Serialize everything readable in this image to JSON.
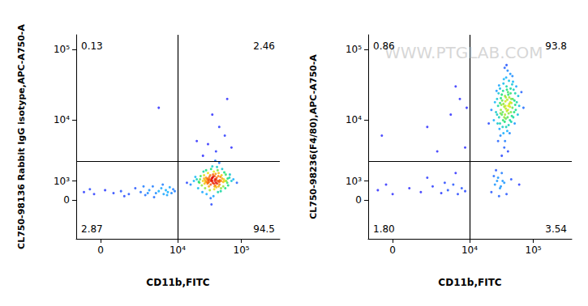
{
  "chart_data": [
    {
      "type": "scatter",
      "x_label": "CD11b,FITC",
      "y_label": "CL750-98136 Rabbit IgG isotype,APC-A750-A",
      "xlim": [
        -1250,
        400000
      ],
      "ylim": [
        -2400,
        160000
      ],
      "xticks": [
        0,
        {
          "value": 10000,
          "label": "10⁴"
        },
        {
          "value": 100000,
          "label": "10⁵"
        }
      ],
      "yticks": [
        0,
        {
          "value": 1000,
          "label": "10³"
        },
        {
          "value": 10000,
          "label": "10⁴"
        },
        {
          "value": 100000,
          "label": "10⁵"
        }
      ],
      "grid": false,
      "gates": {
        "x": 10000,
        "y": 2450
      },
      "quadrants": {
        "values": [
          0.13,
          2.46,
          2.87,
          94.5
        ],
        "value_labels": [
          "0.13",
          "2.46",
          "2.87",
          "94.5"
        ]
      },
      "x": [
        35000,
        30000,
        40000,
        28000,
        45000,
        33000,
        38000,
        25000,
        50000,
        31000,
        42000,
        36000,
        27000,
        55000,
        22000,
        47000,
        34000,
        39000,
        29000,
        44000,
        32000,
        60000,
        20000,
        37000,
        26000,
        52000,
        41000,
        30500,
        48000,
        35500,
        24000,
        65000,
        18000,
        43000,
        33500,
        57000,
        28500,
        38500,
        46000,
        31500,
        70000,
        16000,
        36500,
        42500,
        23000,
        53000,
        27500,
        40500,
        34500,
        49000,
        21000,
        62000,
        39500,
        30000,
        45500,
        26500,
        58000,
        37500,
        32500,
        44500,
        19000,
        75000,
        35000,
        28000,
        41500,
        50000,
        24500,
        33000,
        47500,
        54000,
        29500,
        38000,
        43500,
        31000,
        66000,
        22500,
        36000,
        40000,
        27000,
        52000,
        30000,
        85000,
        14000,
        45000,
        34000,
        39000,
        25500,
        56000,
        32000,
        42000,
        37000,
        35000,
        29000,
        48000,
        33500,
        44000,
        26000,
        61000,
        21500,
        38500,
        40000,
        30000,
        55000,
        25000,
        45000,
        35000,
        70000,
        20000,
        60000,
        5000,
        -800,
        -300,
        200,
        600,
        1000,
        1500,
        2000,
        2500,
        3000,
        3500,
        4000,
        4500,
        5000,
        5500,
        6000,
        6500,
        7000,
        7500,
        8000,
        8500,
        9000,
        1200,
        2800,
        -500,
        4200,
        5800,
        3300,
        6800
      ],
      "values": [
        1000,
        900,
        1100,
        1200,
        950,
        800,
        1300,
        1000,
        1150,
        700,
        850,
        1400,
        600,
        1000,
        900,
        1250,
        1050,
        750,
        1100,
        1500,
        500,
        900,
        1100,
        1600,
        1350,
        700,
        1200,
        1050,
        600,
        900,
        750,
        1200,
        1000,
        400,
        1800,
        1400,
        300,
        1000,
        1050,
        1250,
        1000,
        800,
        200,
        1700,
        1300,
        1100,
        950,
        650,
        1150,
        1350,
        600,
        750,
        1450,
        1500,
        800,
        850,
        1000,
        550,
        1350,
        1000,
        1250,
        1100,
        2000,
        1700,
        1950,
        1800,
        400,
        100,
        450,
        1550,
        850,
        700,
        1300,
        950,
        1400,
        1100,
        1250,
        900,
        1050,
        950,
        1150,
        900,
        900,
        2300,
        -200,
        2500,
        1600,
        600,
        1100,
        1000,
        850,
        1200,
        950,
        1000,
        1000,
        700,
        1150,
        1150,
        950,
        1100,
        3500,
        4500,
        6000,
        3000,
        8000,
        12000,
        4000,
        5000,
        20000,
        15000,
        400,
        300,
        500,
        350,
        450,
        300,
        600,
        400,
        250,
        500,
        700,
        350,
        450,
        600,
        300,
        500,
        400,
        650,
        350,
        550,
        450,
        200,
        700,
        550,
        150,
        800,
        350,
        250
      ]
    },
    {
      "type": "scatter",
      "x_label": "CD11b,FITC",
      "y_label": "CL750-98236(F4/80),APC-A750-A",
      "xlim": [
        -1250,
        400000
      ],
      "ylim": [
        -2400,
        160000
      ],
      "xticks": [
        0,
        {
          "value": 10000,
          "label": "10⁴"
        },
        {
          "value": 100000,
          "label": "10⁵"
        }
      ],
      "yticks": [
        0,
        {
          "value": 1000,
          "label": "10³"
        },
        {
          "value": 10000,
          "label": "10⁴"
        },
        {
          "value": 100000,
          "label": "10⁵"
        }
      ],
      "grid": false,
      "gates": {
        "x": 10000,
        "y": 2450
      },
      "quadrants": {
        "values": [
          0.86,
          93.8,
          1.8,
          3.54
        ],
        "value_labels": [
          "0.86",
          "93.8",
          "1.80",
          "3.54"
        ]
      },
      "annotations": [
        "WWW.PTGLAB.COM"
      ],
      "x": [
        37000,
        32000,
        42000,
        30000,
        45000,
        35000,
        40000,
        28000,
        50000,
        33000,
        38000,
        43000,
        27000,
        55000,
        31000,
        36000,
        47000,
        29000,
        39000,
        44000,
        34000,
        52000,
        26000,
        41000,
        37500,
        30500,
        48000,
        35500,
        24000,
        46000,
        33500,
        58000,
        28500,
        40500,
        36000,
        43500,
        32500,
        51000,
        38500,
        25000,
        45500,
        34000,
        60000,
        29500,
        42000,
        37000,
        49000,
        31500,
        39500,
        27500,
        53000,
        35000,
        44500,
        30000,
        41000,
        36500,
        47500,
        33000,
        65000,
        22000,
        40000,
        38000,
        34500,
        46500,
        28000,
        50500,
        32000,
        43000,
        36000,
        39000,
        30500,
        54000,
        26500,
        42500,
        37500,
        48500,
        35000,
        31000,
        44000,
        40000,
        33500,
        57000,
        29000,
        38500,
        45000,
        36500,
        41500,
        34000,
        52000,
        27000,
        39500,
        47000,
        32000,
        43500,
        37000,
        70000,
        20000,
        35500,
        40500,
        30000,
        2000,
        5000,
        -500,
        7000,
        8500,
        3000,
        6000,
        9000,
        25000,
        30000,
        28000,
        35000,
        22000,
        32000,
        27000,
        38000,
        24000,
        31000,
        45000,
        29000,
        26000,
        33000,
        60000,
        -700,
        0,
        800,
        1500,
        2500,
        3500,
        4500,
        5500,
        6500,
        7500,
        8500,
        2000,
        4000,
        -300,
        6000
      ],
      "values": [
        14600,
        12000,
        17000,
        9000,
        20000,
        11000,
        25000,
        16000,
        13000,
        8000,
        30000,
        10000,
        20000,
        18000,
        14000,
        22000,
        15000,
        11000,
        7000,
        28000,
        17000,
        24000,
        13000,
        12500,
        40000,
        6000,
        35000,
        9500,
        10000,
        11500,
        26000,
        22000,
        24000,
        16000,
        5000,
        45000,
        19000,
        9000,
        13500,
        18000,
        17500,
        33000,
        16000,
        7500,
        21000,
        10500,
        27000,
        16500,
        50000,
        9000,
        14000,
        4000,
        13000,
        28000,
        8500,
        18500,
        20000,
        13000,
        25000,
        14000,
        3500,
        60000,
        38000,
        32000,
        5000,
        19000,
        23000,
        15500,
        12000,
        19500,
        12500,
        30000,
        26000,
        6500,
        8000,
        11000,
        15500,
        20500,
        24000,
        14000,
        10000,
        12000,
        31000,
        27000,
        9500,
        16000,
        36000,
        6500,
        16500,
        12000,
        11000,
        42000,
        3000,
        18000,
        21000,
        15000,
        9000,
        55000,
        23000,
        17500,
        8000,
        12000,
        6000,
        20000,
        4000,
        3500,
        30000,
        15000,
        800,
        600,
        1200,
        900,
        400,
        1500,
        1000,
        300,
        1300,
        700,
        1100,
        200,
        1700,
        1000,
        800,
        500,
        300,
        600,
        400,
        700,
        350,
        500,
        800,
        300,
        600,
        450,
        1200,
        900,
        800,
        1500
      ]
    }
  ]
}
